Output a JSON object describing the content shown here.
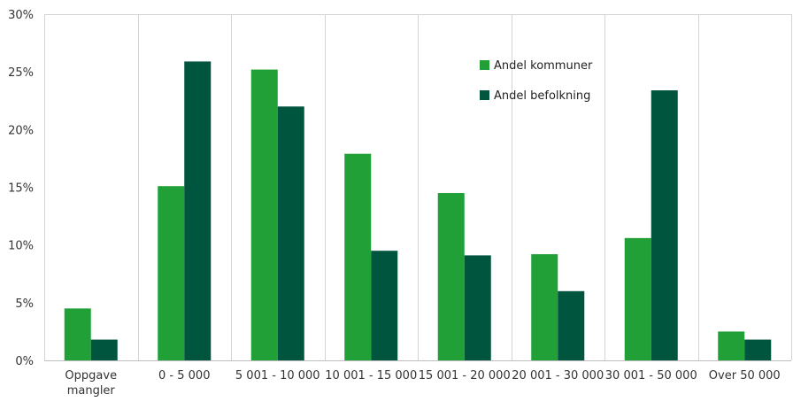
{
  "chart_data": {
    "type": "bar",
    "title": "",
    "xlabel": "",
    "ylabel": "",
    "categories": [
      [
        "Oppgave",
        "mangler"
      ],
      [
        "0 - 5 000"
      ],
      [
        "5 001 - 10 000"
      ],
      [
        "10 001 - 15 000"
      ],
      [
        "15 001 - 20 000"
      ],
      [
        "20 001 - 30 000"
      ],
      [
        "30 001 - 50 000"
      ],
      [
        "Over 50 000"
      ]
    ],
    "series": [
      {
        "name": "Andel kommuner",
        "color": "#21a038",
        "values": [
          4.5,
          15.1,
          25.2,
          17.9,
          14.5,
          9.2,
          10.6,
          2.5
        ]
      },
      {
        "name": "Andel befolkning",
        "color": "#00553e",
        "values": [
          1.8,
          25.9,
          22.0,
          9.5,
          9.1,
          6.0,
          23.4,
          1.8
        ]
      }
    ],
    "ylim": [
      0,
      30
    ],
    "yticks": [
      "0%",
      "5%",
      "10%",
      "15%",
      "20%",
      "25%",
      "30%"
    ],
    "grid": "vertical-separators",
    "legend": "top-right-inside"
  }
}
